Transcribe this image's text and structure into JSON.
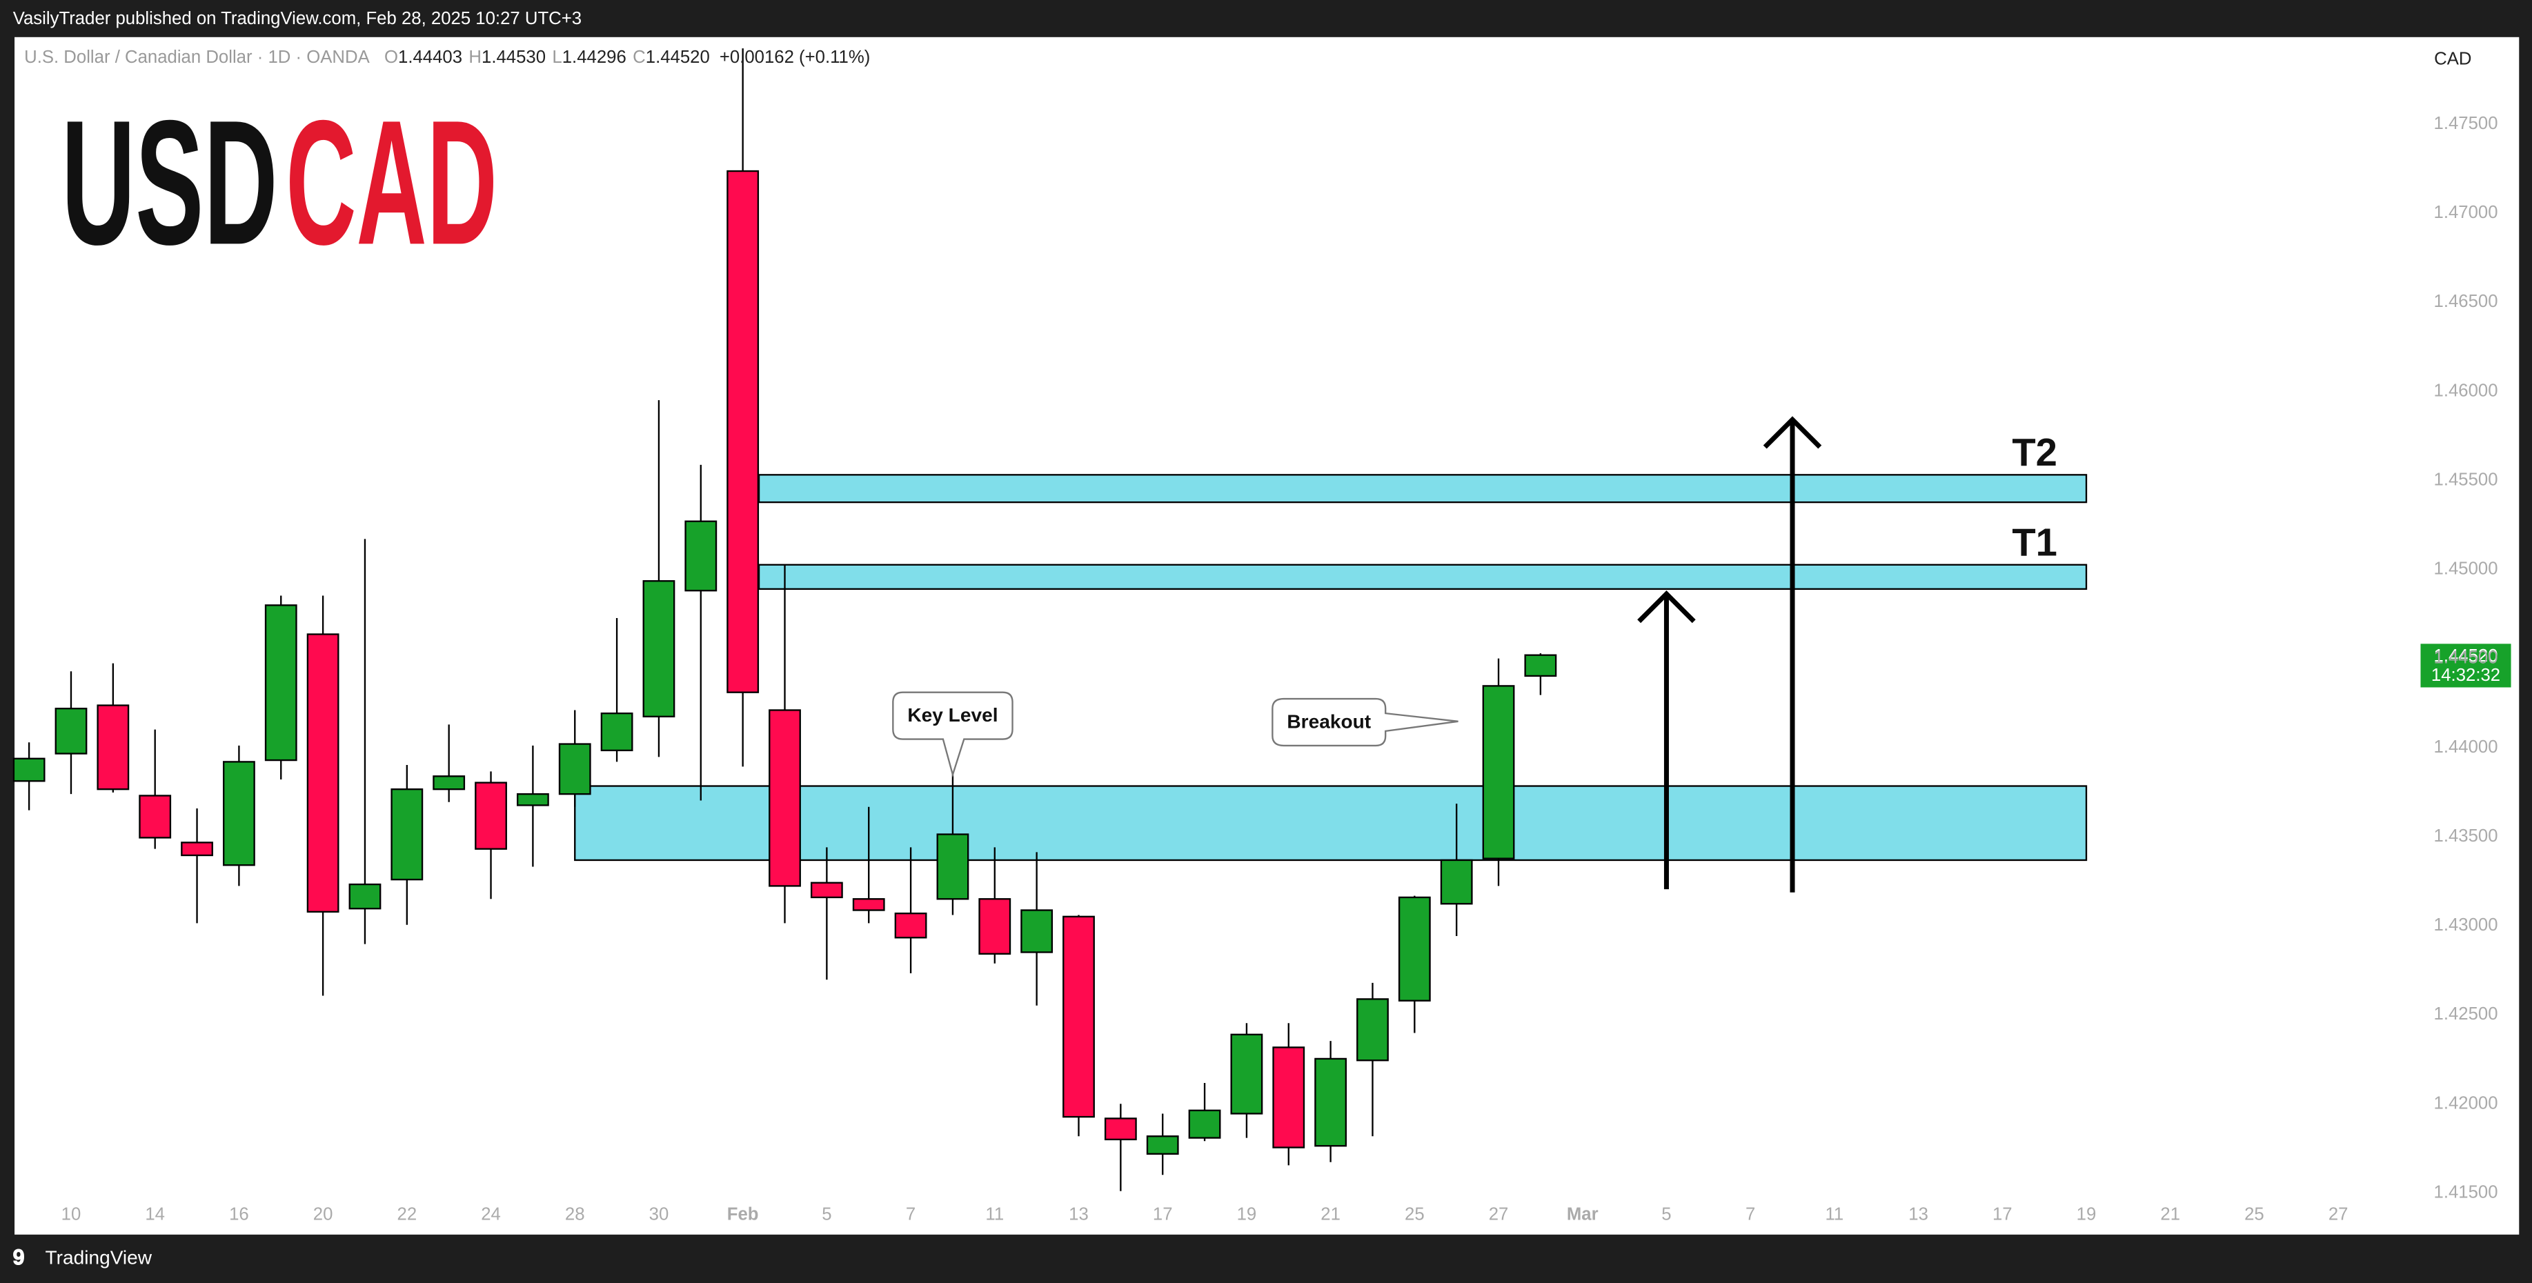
{
  "header": {
    "publisher": "VasilyTrader published on TradingView.com, Feb 28, 2025 10:27 UTC+3",
    "footer_brand": "TradingView"
  },
  "chart_data": {
    "type": "candlestick",
    "symbol": "U.S. Dollar / Canadian Dollar · 1D · OANDA",
    "legend_values": [
      {
        "key": "O",
        "value": "1.44403"
      },
      {
        "key": "H",
        "value": "1.44530"
      },
      {
        "key": "L",
        "value": "1.44296"
      },
      {
        "key": "C",
        "value": "1.44520"
      }
    ],
    "change": "+0.00162 (+0.11%)",
    "logo": {
      "base": "USD",
      "quote": "CAD"
    },
    "currency": "CAD",
    "up_color": "#17a22a",
    "down_color": "#ff0a4f",
    "zone_color": "#80deea",
    "categories": [
      null,
      "10",
      null,
      "14",
      null,
      "16",
      null,
      "20",
      null,
      "22",
      null,
      "24",
      null,
      "28",
      null,
      "30",
      null,
      "Feb",
      null,
      "5",
      null,
      "7",
      null,
      "11",
      null,
      "13",
      null,
      "17",
      null,
      "19",
      null,
      "21",
      null,
      "25",
      null,
      "27",
      null,
      "Mar",
      null,
      "5",
      null,
      "7",
      null,
      "11",
      null,
      "13",
      null,
      "17",
      null,
      "19",
      null,
      "21",
      null,
      "25",
      null,
      "27"
    ],
    "open": [
      1.43813,
      1.43967,
      1.44238,
      1.43731,
      1.43468,
      1.43341,
      1.4393,
      1.44637,
      1.43097,
      1.4326,
      1.43767,
      1.43804,
      1.43677,
      1.4374,
      1.43985,
      1.44175,
      1.44882,
      1.47237,
      1.44211,
      1.43242,
      1.43151,
      1.4307,
      1.43151,
      1.43151,
      1.42852,
      1.43052,
      1.41919,
      1.4172,
      1.4181,
      1.41946,
      1.42318,
      1.41765,
      1.42245,
      1.4258,
      1.43124,
      1.43378,
      1.44403,
      null,
      null,
      null,
      null,
      null,
      null,
      null,
      null,
      null,
      null,
      null,
      null,
      null,
      null,
      null,
      null,
      null,
      null,
      null
    ],
    "high": [
      1.4403,
      1.44429,
      1.44474,
      1.44102,
      1.43659,
      1.44012,
      1.44854,
      1.44854,
      1.45172,
      1.43903,
      1.4413,
      1.43867,
      1.44012,
      1.44211,
      1.44728,
      1.45951,
      1.45588,
      1.47926,
      1.45027,
      1.43441,
      1.43668,
      1.43441,
      1.43867,
      1.43441,
      1.43414,
      1.43061,
      1.42001,
      1.41946,
      1.42118,
      1.42454,
      1.42454,
      1.42354,
      1.4268,
      1.43169,
      1.43686,
      1.44501,
      1.4453,
      null,
      null,
      null,
      null,
      null,
      null,
      null,
      null,
      null,
      null,
      null,
      null,
      null,
      null,
      null,
      null,
      null,
      null,
      null
    ],
    "low": [
      1.43649,
      1.4374,
      1.43749,
      1.43432,
      1.43015,
      1.43224,
      1.43822,
      1.42608,
      1.42898,
      1.43006,
      1.43695,
      1.43151,
      1.43332,
      1.43668,
      1.43921,
      1.43948,
      1.43704,
      1.43894,
      1.43015,
      1.42698,
      1.43015,
      1.42734,
      1.43061,
      1.42789,
      1.42553,
      1.41819,
      1.41511,
      1.41602,
      1.41792,
      1.4181,
      1.41656,
      1.41674,
      1.41819,
      1.42399,
      1.42943,
      1.43224,
      1.44296,
      null,
      null,
      null,
      null,
      null,
      null,
      null,
      null,
      null,
      null,
      null,
      null,
      null,
      null,
      null,
      null,
      null,
      null,
      null
    ],
    "close": [
      1.43939,
      1.4422,
      1.43767,
      1.43495,
      1.43396,
      1.43921,
      1.448,
      1.43079,
      1.43233,
      1.43767,
      1.4384,
      1.43432,
      1.4374,
      1.44021,
      1.44193,
      1.44936,
      1.45271,
      1.44311,
      1.43224,
      1.4316,
      1.43088,
      1.42934,
      1.43514,
      1.42843,
      1.43088,
      1.41928,
      1.41801,
      1.41819,
      1.41964,
      1.4239,
      1.41756,
      1.42254,
      1.42589,
      1.4316,
      1.43369,
      1.44347,
      1.4452,
      null,
      null,
      null,
      null,
      null,
      null,
      null,
      null,
      null,
      null,
      null,
      null,
      null,
      null,
      null,
      null,
      null,
      null,
      null
    ],
    "ylim": [
      1.41267,
      1.47989
    ],
    "yticks": [
      {
        "value": 1.415,
        "label": "1.41500"
      },
      {
        "value": 1.42,
        "label": "1.42000"
      },
      {
        "value": 1.425,
        "label": "1.42500"
      },
      {
        "value": 1.43,
        "label": "1.43000"
      },
      {
        "value": 1.435,
        "label": "1.43500"
      },
      {
        "value": 1.44,
        "label": "1.44000"
      },
      {
        "value": 1.445,
        "label": "1.44500"
      },
      {
        "value": 1.45,
        "label": "1.45000"
      },
      {
        "value": 1.455,
        "label": "1.45500"
      },
      {
        "value": 1.46,
        "label": "1.46000"
      },
      {
        "value": 1.465,
        "label": "1.46500"
      },
      {
        "value": 1.47,
        "label": "1.47000"
      },
      {
        "value": 1.475,
        "label": "1.47500"
      }
    ],
    "last_price": {
      "value": 1.4452,
      "label": "1.44520",
      "countdown": "14:32:32"
    },
    "zones": [
      {
        "top": 1.43785,
        "bottom": 1.43369
      },
      {
        "label": "T1",
        "top": 1.45027,
        "bottom": 1.44891
      },
      {
        "label": "T2",
        "top": 1.45532,
        "bottom": 1.45378
      }
    ],
    "annotations": [
      "Key Level",
      "Breakout"
    ]
  }
}
